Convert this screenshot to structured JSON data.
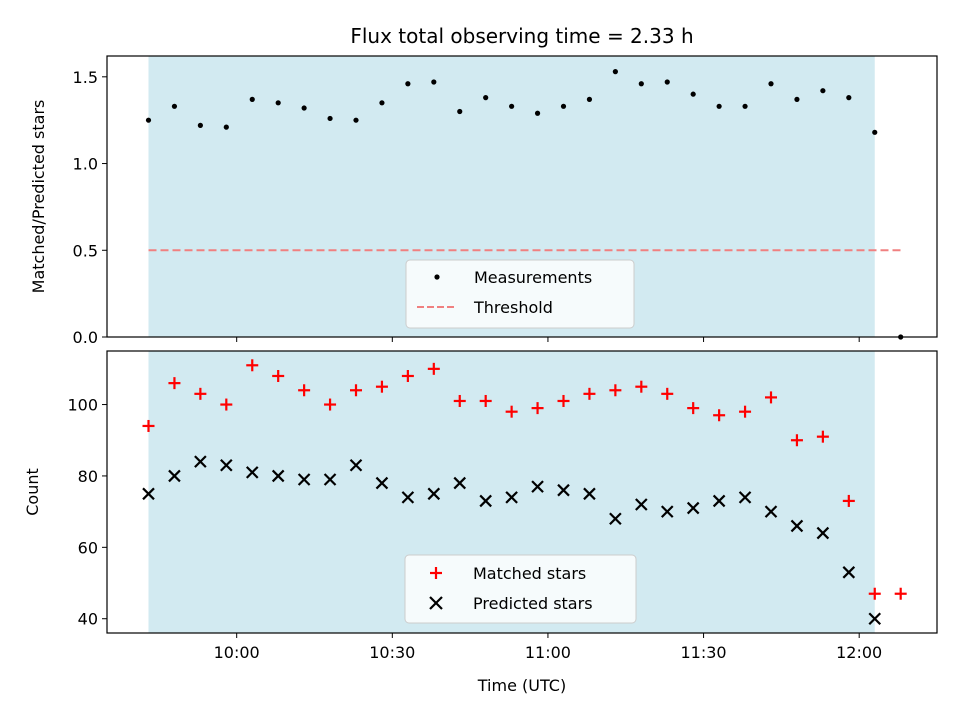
{
  "chart_data": [
    {
      "type": "scatter",
      "title": "Flux total observing time = 2.33 h",
      "xlabel": "",
      "ylabel": "Matched/Predicted stars",
      "xlim_minutes": [
        575,
        735
      ],
      "ylim": [
        0.0,
        1.62
      ],
      "yticks": [
        {
          "value": 0.0,
          "label": "0.0"
        },
        {
          "value": 0.5,
          "label": "0.5"
        },
        {
          "value": 1.0,
          "label": "1.0"
        },
        {
          "value": 1.5,
          "label": "1.5"
        }
      ],
      "xticks_minutes": [
        600,
        630,
        660,
        690,
        720
      ],
      "shaded_span_minutes": [
        583,
        723
      ],
      "x_minutes": [
        583,
        588,
        593,
        598,
        603,
        608,
        613,
        618,
        623,
        628,
        633,
        638,
        643,
        648,
        653,
        658,
        663,
        668,
        673,
        678,
        683,
        688,
        693,
        698,
        703,
        708,
        713,
        718,
        723,
        728
      ],
      "series": [
        {
          "name": "Measurements",
          "marker": "dot",
          "color": "#000000",
          "values": [
            1.25,
            1.33,
            1.22,
            1.21,
            1.37,
            1.35,
            1.32,
            1.26,
            1.25,
            1.35,
            1.46,
            1.47,
            1.3,
            1.38,
            1.33,
            1.29,
            1.33,
            1.37,
            1.53,
            1.46,
            1.47,
            1.4,
            1.33,
            1.33,
            1.46,
            1.37,
            1.42,
            1.38,
            1.18,
            0.0
          ]
        },
        {
          "name": "Threshold",
          "marker": "dashed-line",
          "color": "#f08080",
          "x_range_minutes": [
            583,
            728
          ],
          "value": 0.5
        }
      ],
      "legend": "lower-center"
    },
    {
      "type": "scatter",
      "title": "",
      "xlabel": "Time (UTC)",
      "ylabel": "Count",
      "xlim_minutes": [
        575,
        735
      ],
      "ylim": [
        36,
        115
      ],
      "yticks": [
        {
          "value": 40,
          "label": "40"
        },
        {
          "value": 60,
          "label": "60"
        },
        {
          "value": 80,
          "label": "80"
        },
        {
          "value": 100,
          "label": "100"
        }
      ],
      "xticks": [
        {
          "minutes": 600,
          "label": "10:00"
        },
        {
          "minutes": 630,
          "label": "10:30"
        },
        {
          "minutes": 660,
          "label": "11:00"
        },
        {
          "minutes": 690,
          "label": "11:30"
        },
        {
          "minutes": 720,
          "label": "12:00"
        }
      ],
      "shaded_span_minutes": [
        583,
        723
      ],
      "series": [
        {
          "name": "Matched stars",
          "marker": "plus",
          "color": "#ff0000",
          "x_minutes": [
            583,
            588,
            593,
            598,
            603,
            608,
            613,
            618,
            623,
            628,
            633,
            638,
            643,
            648,
            653,
            658,
            663,
            668,
            673,
            678,
            683,
            688,
            693,
            698,
            703,
            708,
            713,
            718,
            723,
            728
          ],
          "values": [
            94,
            106,
            103,
            100,
            111,
            108,
            104,
            100,
            104,
            105,
            108,
            110,
            101,
            101,
            98,
            99,
            101,
            103,
            104,
            105,
            103,
            99,
            97,
            98,
            102,
            90,
            91,
            73,
            47,
            47
          ]
        },
        {
          "name": "Predicted stars",
          "marker": "x",
          "color": "#000000",
          "x_minutes": [
            583,
            588,
            593,
            598,
            603,
            608,
            613,
            618,
            623,
            628,
            633,
            638,
            643,
            648,
            653,
            658,
            663,
            668,
            673,
            678,
            683,
            688,
            693,
            698,
            703,
            708,
            713,
            718,
            723
          ],
          "values": [
            75,
            80,
            84,
            83,
            81,
            80,
            79,
            79,
            83,
            78,
            74,
            75,
            78,
            73,
            74,
            77,
            76,
            75,
            68,
            72,
            70,
            71,
            73,
            74,
            70,
            66,
            64,
            53,
            40
          ]
        }
      ],
      "legend": "lower-center"
    }
  ],
  "colors": {
    "shade": "#add8e6",
    "legend_bg": "#ffffff"
  }
}
